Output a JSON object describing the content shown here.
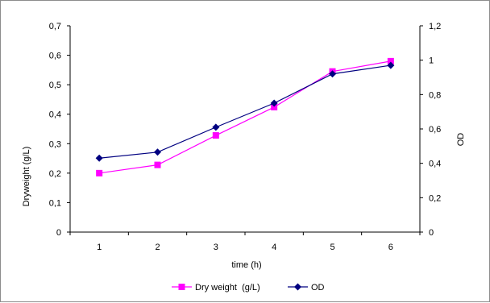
{
  "chart_data": {
    "type": "line",
    "xlabel": "time (h)",
    "ylabel": "Dryweight (g/L)",
    "y2label": "OD",
    "x": [
      1,
      2,
      3,
      4,
      5,
      6
    ],
    "x_ticks": [
      "1",
      "2",
      "3",
      "4",
      "5",
      "6"
    ],
    "ylim": [
      0,
      0.7
    ],
    "y_ticks": [
      "0",
      "0,1",
      "0,2",
      "0,3",
      "0,4",
      "0,5",
      "0,6",
      "0,7"
    ],
    "y2lim": [
      0,
      1.2
    ],
    "y2_ticks": [
      "0",
      "0,2",
      "0,4",
      "0,6",
      "0,8",
      "1",
      "1,2"
    ],
    "legend_position": "bottom",
    "grid": false,
    "series": [
      {
        "name": "Dry weight  (g/L)",
        "axis": "left",
        "color": "#ff00ff",
        "marker": "square",
        "values": [
          0.2,
          0.228,
          0.328,
          0.424,
          0.545,
          0.58
        ]
      },
      {
        "name": "OD",
        "axis": "right",
        "color": "#000080",
        "marker": "diamond",
        "values": [
          0.43,
          0.465,
          0.61,
          0.75,
          0.92,
          0.97
        ]
      }
    ]
  }
}
